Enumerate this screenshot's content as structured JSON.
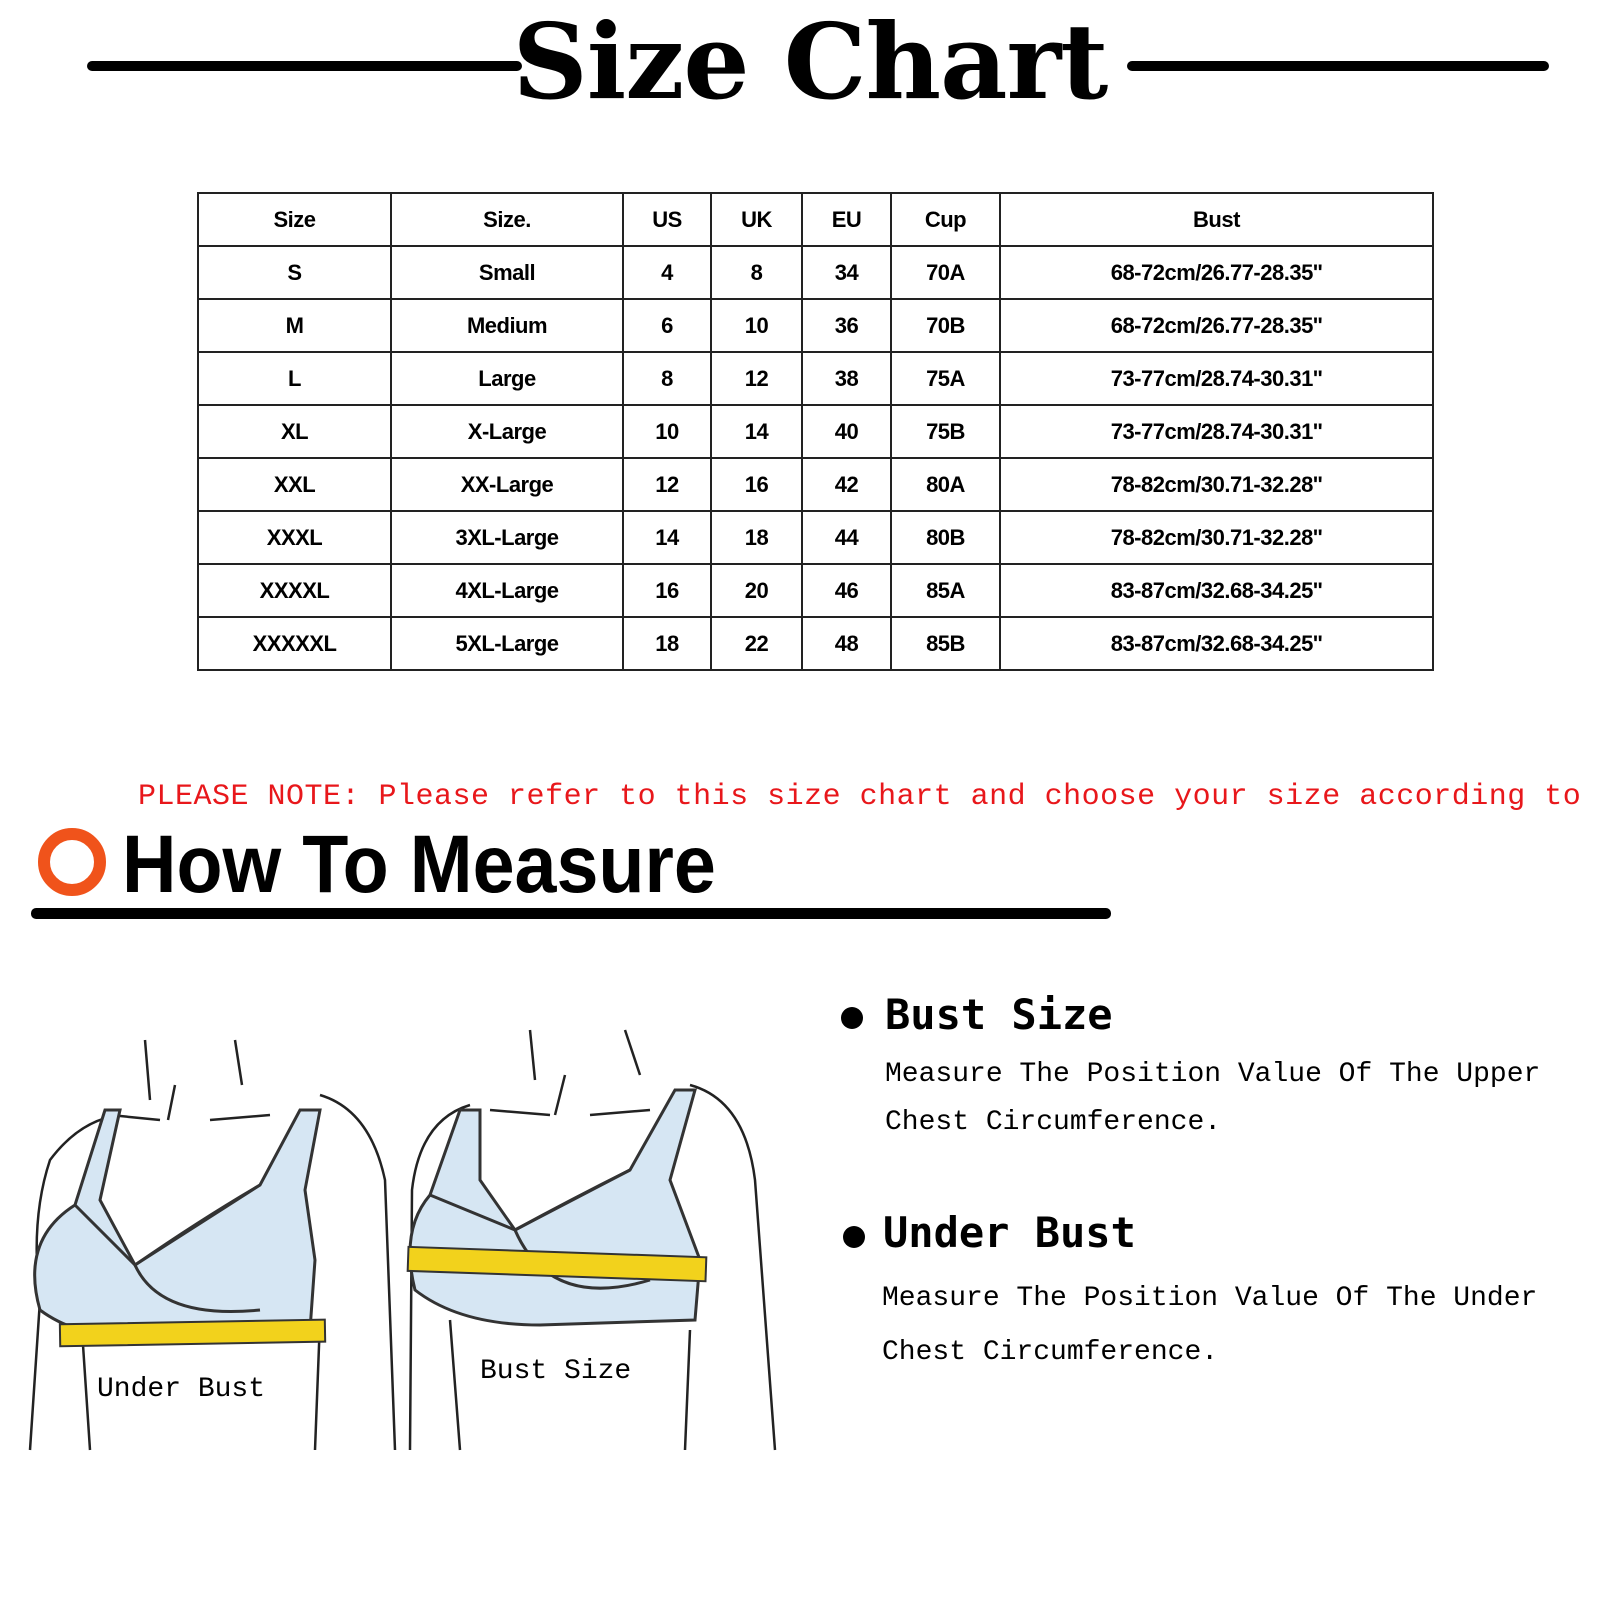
{
  "title": "Size Chart",
  "table": {
    "headers": [
      "Size",
      "Size.",
      "US",
      "UK",
      "EU",
      "Cup",
      "Bust"
    ],
    "rows": [
      [
        "S",
        "Small",
        "4",
        "8",
        "34",
        "70A",
        "68-72cm/26.77-28.35''"
      ],
      [
        "M",
        "Medium",
        "6",
        "10",
        "36",
        "70B",
        "68-72cm/26.77-28.35''"
      ],
      [
        "L",
        "Large",
        "8",
        "12",
        "38",
        "75A",
        "73-77cm/28.74-30.31''"
      ],
      [
        "XL",
        "X-Large",
        "10",
        "14",
        "40",
        "75B",
        "73-77cm/28.74-30.31''"
      ],
      [
        "XXL",
        "XX-Large",
        "12",
        "16",
        "42",
        "80A",
        "78-82cm/30.71-32.28''"
      ],
      [
        "XXXL",
        "3XL-Large",
        "14",
        "18",
        "44",
        "80B",
        "78-82cm/30.71-32.28''"
      ],
      [
        "XXXXL",
        "4XL-Large",
        "16",
        "20",
        "46",
        "85A",
        "83-87cm/32.68-34.25''"
      ],
      [
        "XXXXXL",
        "5XL-Large",
        "18",
        "22",
        "48",
        "85B",
        "83-87cm/32.68-34.25''"
      ]
    ]
  },
  "note": "PLEASE NOTE: Please refer to this size chart and choose your size according to it",
  "how_to": {
    "title": "How To Measure",
    "items": [
      {
        "heading": "Bust Size",
        "lines": [
          "Measure The Position Value Of The Upper",
          "Chest Circumference."
        ]
      },
      {
        "heading": "Under Bust",
        "lines": [
          "Measure The Position Value Of The Under",
          "Chest Circumference."
        ]
      }
    ],
    "figure_labels": [
      "Under Bust",
      "Bust Size"
    ]
  },
  "colors": {
    "note": "#e8171b",
    "ring": "#f0531b",
    "tape": "#f2d21c",
    "garment": "#d6e6f3"
  }
}
